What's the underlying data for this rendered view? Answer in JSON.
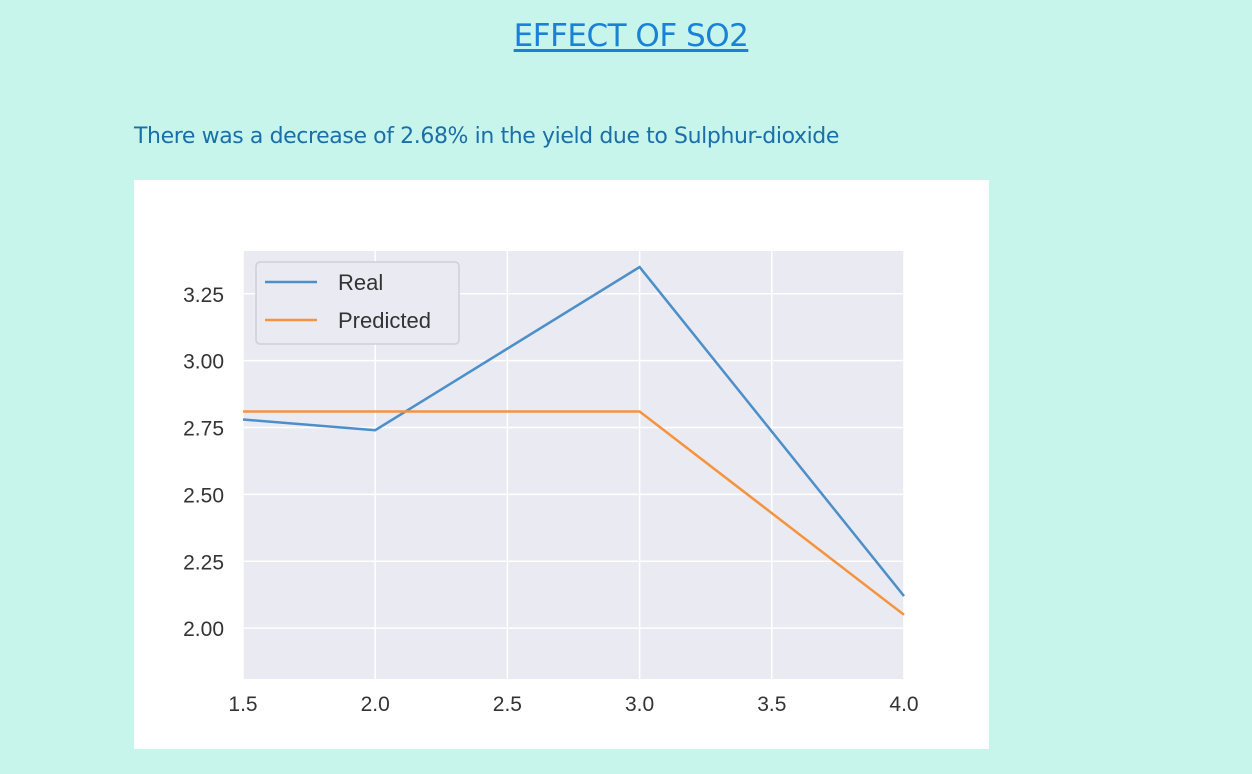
{
  "header": {
    "title": "EFFECT OF SO2"
  },
  "main": {
    "description": "There was a decrease of 2.68% in the yield due to Sulphur-dioxide"
  },
  "colors": {
    "background": "#c8f5eb",
    "title": "#1a82d6",
    "description": "#1a6fa8",
    "plot_area": "#eaeaf2",
    "grid": "#ffffff",
    "real": "#4c8fc9",
    "predicted": "#f5933e"
  },
  "chart_data": {
    "type": "line",
    "title": "",
    "xlabel": "",
    "ylabel": "",
    "x": [
      1.5,
      2.0,
      3.0,
      4.0
    ],
    "series": [
      {
        "name": "Real",
        "values": [
          2.78,
          2.74,
          3.35,
          2.12
        ]
      },
      {
        "name": "Predicted",
        "values": [
          2.81,
          2.81,
          2.81,
          2.05
        ]
      }
    ],
    "xlim": [
      1.5,
      4.0
    ],
    "ylim": [
      1.81,
      3.41
    ],
    "xticks": [
      1.5,
      2.0,
      2.5,
      3.0,
      3.5,
      4.0
    ],
    "xtick_labels": [
      "1.5",
      "2.0",
      "2.5",
      "3.0",
      "3.5",
      "4.0"
    ],
    "yticks": [
      2.0,
      2.25,
      2.5,
      2.75,
      3.0,
      3.25
    ],
    "ytick_labels": [
      "2.00",
      "2.25",
      "2.50",
      "2.75",
      "3.00",
      "3.25"
    ],
    "grid": true,
    "legend_position": "top-left"
  }
}
